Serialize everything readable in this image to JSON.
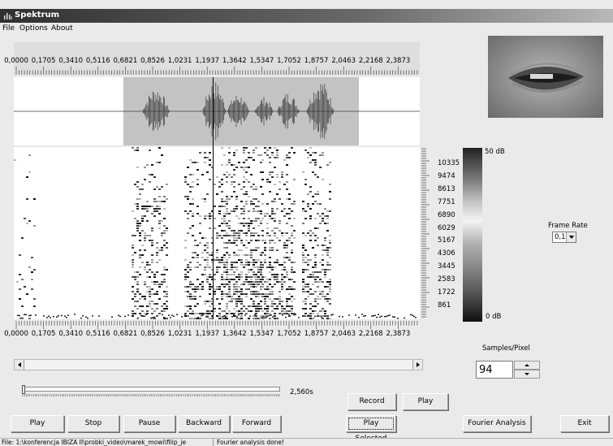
{
  "window": {
    "title": "Spektrum"
  },
  "menu": [
    "File",
    "Options",
    "About"
  ],
  "time_axis": [
    "0,0000",
    "0,1705",
    "0,3410",
    "0,5116",
    "0,6821",
    "0,8526",
    "1,0231",
    "1,1937",
    "1,3642",
    "1,5347",
    "1,7052",
    "1,8757",
    "2,0463",
    "2,2168",
    "2,3873"
  ],
  "freq_axis": [
    "10335",
    "9474",
    "8613",
    "7751",
    "6890",
    "6029",
    "5167",
    "4306",
    "3445",
    "2583",
    "1722",
    "861"
  ],
  "colorbar": {
    "top_label": "50 dB",
    "bottom_label": "0 dB"
  },
  "frame_rate": {
    "label": "Frame Rate",
    "value": "0,1"
  },
  "samples_per_pixel": {
    "label": "Samples/Pixel",
    "value": "94"
  },
  "playback": {
    "duration": "2,560s",
    "progress": 0.0
  },
  "buttons": {
    "play": "Play",
    "stop": "Stop",
    "pause": "Pause",
    "backward": "Backward",
    "forward": "Forward",
    "record": "Record",
    "play2": "Play",
    "play_selected": "Play Selected",
    "fourier": "Fourier Analysis",
    "exit": "Exit"
  },
  "status": {
    "file": "File: 1:\\konferencja IBIZA II\\probki_video\\marek_mowi\\filip_je",
    "message": "Fourier analysis done!"
  }
}
